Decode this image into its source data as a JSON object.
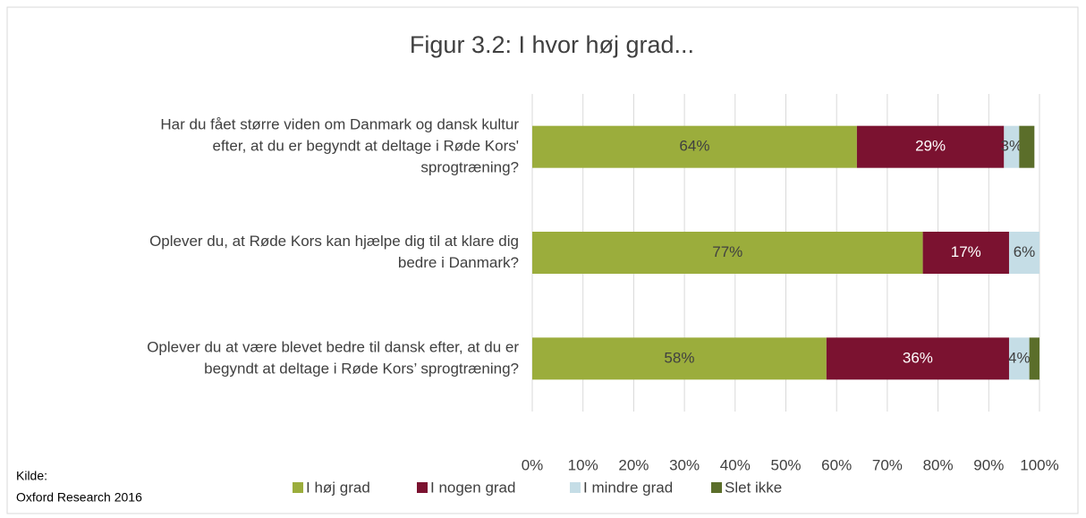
{
  "chart_data": {
    "type": "stacked_bar_horizontal",
    "title": "Figur 3.2: I hvor høj grad...",
    "categories": [
      [
        "Har du fået større viden om Danmark og dansk kultur",
        "efter, at du er begyndt at deltage i Røde Kors'",
        "sprogtræning?"
      ],
      [
        "Oplever du, at Røde Kors kan hjælpe dig til at klare dig",
        "bedre i Danmark?"
      ],
      [
        "Oplever du at være blevet bedre til dansk efter, at du er",
        "begyndt at deltage i Røde Kors’ sprogtræning?"
      ]
    ],
    "series": [
      {
        "name": "I høj grad",
        "color": "#9bad3c",
        "label_color": "#404040",
        "values": [
          64,
          77,
          58
        ],
        "value_labels": [
          "64%",
          "77%",
          "58%"
        ]
      },
      {
        "name": "I nogen grad",
        "color": "#7b1230",
        "label_color": "#ffffff",
        "values": [
          29,
          17,
          36
        ],
        "value_labels": [
          "29%",
          "17%",
          "36%"
        ]
      },
      {
        "name": "I mindre grad",
        "color": "#c5dde6",
        "label_color": "#404040",
        "values": [
          3,
          6,
          4
        ],
        "value_labels": [
          "3%",
          "6%",
          "4%"
        ]
      },
      {
        "name": "Slet ikke",
        "color": "#5b6e2a",
        "label_color": "#404040",
        "values": [
          3,
          0,
          2
        ],
        "value_labels": [
          null,
          null,
          null
        ]
      }
    ],
    "xlim": [
      0,
      100
    ],
    "xticks": [
      {
        "value": 0,
        "label": "0%"
      },
      {
        "value": 10,
        "label": "10%"
      },
      {
        "value": 20,
        "label": "20%"
      },
      {
        "value": 30,
        "label": "30%"
      },
      {
        "value": 40,
        "label": "40%"
      },
      {
        "value": 50,
        "label": "50%"
      },
      {
        "value": 60,
        "label": "60%"
      },
      {
        "value": 70,
        "label": "70%"
      },
      {
        "value": 80,
        "label": "80%"
      },
      {
        "value": 90,
        "label": "90%"
      },
      {
        "value": 100,
        "label": "100%"
      }
    ],
    "grid": true,
    "legend": "bottom",
    "source": [
      "Kilde:",
      "Oxford Research 2016"
    ]
  }
}
